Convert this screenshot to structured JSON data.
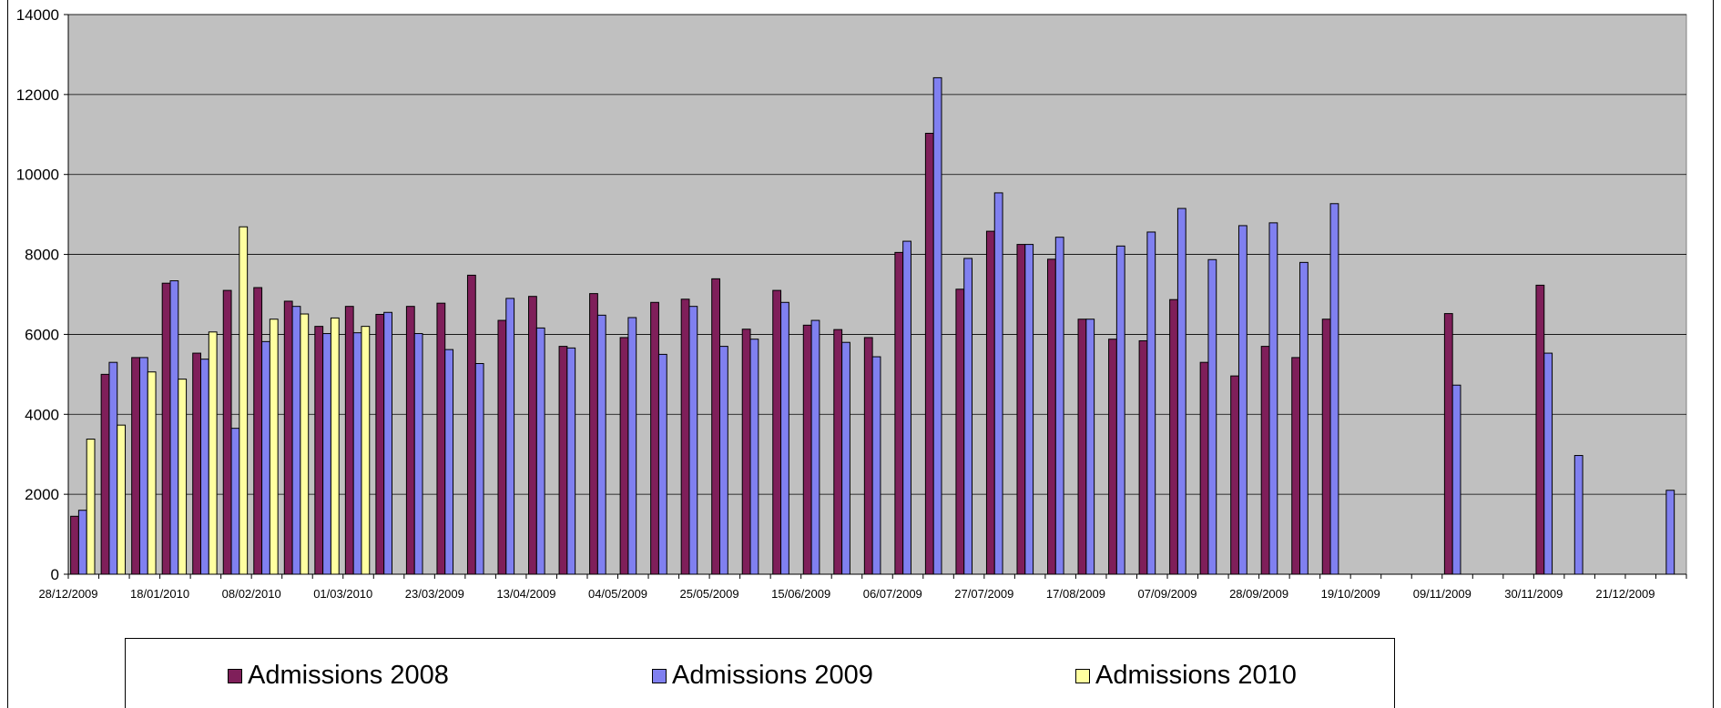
{
  "chart_data": {
    "type": "bar",
    "title": "",
    "xlabel": "",
    "ylabel": "",
    "ylim": [
      0,
      14000
    ],
    "yticks": [
      0,
      2000,
      4000,
      6000,
      8000,
      10000,
      12000,
      14000
    ],
    "grid": true,
    "plot_background": "#c0c0c0",
    "legend_position": "bottom",
    "x_tick_labels": [
      "28/12/2009",
      "18/01/2010",
      "08/02/2010",
      "01/03/2010",
      "23/03/2009",
      "13/04/2009",
      "04/05/2009",
      "25/05/2009",
      "15/06/2009",
      "06/07/2009",
      "27/07/2009",
      "17/08/2009",
      "07/09/2009",
      "28/09/2009",
      "19/10/2009",
      "09/11/2009",
      "30/11/2009",
      "21/12/2009"
    ],
    "x_tick_every": 3,
    "weeks": 53,
    "series": [
      {
        "name": "Admissions 2008",
        "color": "#7f1f5a",
        "values": [
          1450,
          5000,
          5420,
          7280,
          5530,
          7100,
          7170,
          6830,
          6200,
          6700,
          6500,
          6700,
          6780,
          7480,
          6350,
          6950,
          5700,
          7020,
          5920,
          6800,
          6880,
          7390,
          6130,
          7100,
          6230,
          6120,
          5920,
          8050,
          11030,
          7130,
          8580,
          8250,
          7880,
          6380,
          5880,
          5840,
          6870,
          5300,
          4960,
          5700,
          5420,
          6380,
          null,
          null,
          null,
          6520,
          null,
          null,
          7230,
          null,
          null,
          null,
          null
        ]
      },
      {
        "name": "Admissions 2009",
        "color": "#8080f0",
        "values": [
          1600,
          5300,
          5420,
          7340,
          5380,
          3650,
          5820,
          6700,
          6020,
          6040,
          6550,
          6020,
          5620,
          5270,
          6900,
          6160,
          5660,
          6480,
          6420,
          5500,
          6700,
          5700,
          5880,
          6800,
          6350,
          5800,
          5440,
          8330,
          12420,
          7900,
          9540,
          8250,
          8430,
          6380,
          8210,
          8560,
          9150,
          7870,
          8720,
          8790,
          7800,
          9270,
          null,
          null,
          null,
          4730,
          null,
          null,
          5530,
          2970,
          null,
          null,
          2100
        ]
      },
      {
        "name": "Admissions 2010",
        "color": "#ffffa0",
        "values": [
          3380,
          3730,
          5060,
          4880,
          6060,
          8690,
          6380,
          6510,
          6410,
          6200,
          null,
          null,
          null,
          null,
          null,
          null,
          null,
          null,
          null,
          null,
          null,
          null,
          null,
          null,
          null,
          null,
          null,
          null,
          null,
          null,
          null,
          null,
          null,
          null,
          null,
          null,
          null,
          null,
          null,
          null,
          null,
          null,
          null,
          null,
          null,
          null,
          null,
          null,
          null,
          null,
          null,
          null,
          null
        ]
      }
    ]
  },
  "legend": {
    "items": [
      {
        "label": "Admissions 2008",
        "color": "#7f1f5a"
      },
      {
        "label": "Admissions 2009",
        "color": "#8080f0"
      },
      {
        "label": "Admissions 2010",
        "color": "#ffffa0"
      }
    ]
  }
}
